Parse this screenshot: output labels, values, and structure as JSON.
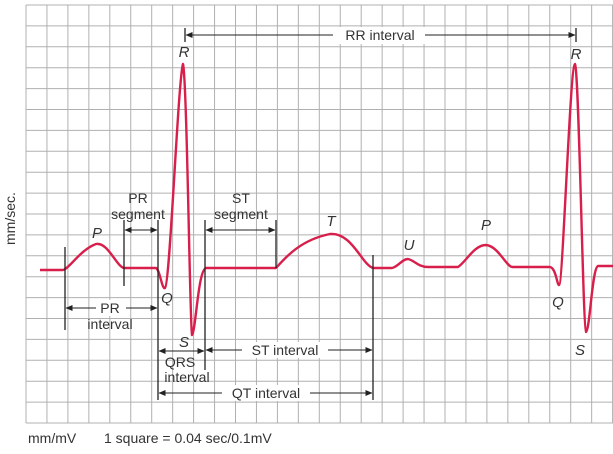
{
  "y_axis_label": "mm/sec.",
  "footer": {
    "units": "mm/mV",
    "scale": "1 square = 0.04 sec/0.1mV"
  },
  "colors": {
    "trace": "#d81f4b",
    "grid": "#b0b0b0",
    "annotation": "#222222"
  },
  "waves": {
    "P1": "P",
    "Q1": "Q",
    "R1": "R",
    "S1": "S",
    "T": "T",
    "U": "U",
    "P2": "P",
    "Q2": "Q",
    "R2": "R",
    "S2": "S"
  },
  "intervals": {
    "rr": "RR interval",
    "pr_segment": [
      "PR",
      "segment"
    ],
    "st_segment": [
      "ST",
      "segment"
    ],
    "pr_interval": [
      "PR",
      "interval"
    ],
    "qrs_interval": [
      "QRS",
      "interval"
    ],
    "st_interval": "ST interval",
    "qt_interval": "QT interval"
  }
}
